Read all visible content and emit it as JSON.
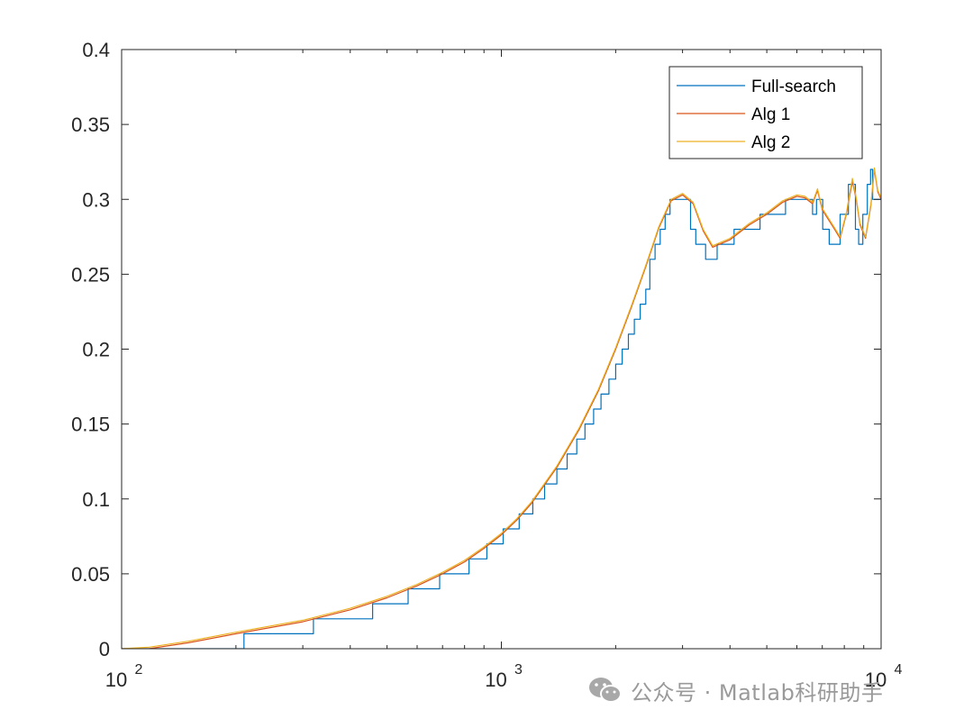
{
  "chart_data": {
    "type": "line",
    "title": "",
    "xlabel": "",
    "ylabel": "",
    "x_scale": "log",
    "xlim": [
      100,
      10000
    ],
    "ylim": [
      0,
      0.4
    ],
    "x_ticks": [
      {
        "value": 100,
        "base": "10",
        "exp": "2"
      },
      {
        "value": 1000,
        "base": "10",
        "exp": "3"
      },
      {
        "value": 10000,
        "base": "10",
        "exp": "4"
      }
    ],
    "y_ticks": [
      {
        "value": 0,
        "label": "0"
      },
      {
        "value": 0.05,
        "label": "0.05"
      },
      {
        "value": 0.1,
        "label": "0.1"
      },
      {
        "value": 0.15,
        "label": "0.15"
      },
      {
        "value": 0.2,
        "label": "0.2"
      },
      {
        "value": 0.25,
        "label": "0.25"
      },
      {
        "value": 0.3,
        "label": "0.3"
      },
      {
        "value": 0.35,
        "label": "0.35"
      },
      {
        "value": 0.4,
        "label": "0.4"
      }
    ],
    "grid": false,
    "legend_position": "top-right",
    "series": [
      {
        "name": "Full-search",
        "color": "#0072BD",
        "step": true,
        "x": [
          100,
          148,
          210,
          320,
          458,
          568,
          688,
          822,
          916,
          1011,
          1114,
          1210,
          1300,
          1400,
          1490,
          1580,
          1660,
          1750,
          1830,
          1920,
          2000,
          2080,
          2160,
          2240,
          2320,
          2400,
          2460,
          2540,
          2620,
          2700,
          2780,
          3150,
          3250,
          3450,
          3700,
          4100,
          4800,
          5600,
          6600,
          6760,
          7020,
          7300,
          7800,
          8200,
          8560,
          8730,
          8950,
          9200,
          9380,
          9500,
          9800,
          10000
        ],
        "y": [
          0,
          0,
          0.01,
          0.02,
          0.03,
          0.04,
          0.05,
          0.06,
          0.07,
          0.08,
          0.09,
          0.1,
          0.11,
          0.12,
          0.13,
          0.14,
          0.15,
          0.16,
          0.17,
          0.18,
          0.19,
          0.2,
          0.21,
          0.22,
          0.23,
          0.24,
          0.26,
          0.27,
          0.28,
          0.29,
          0.3,
          0.28,
          0.27,
          0.26,
          0.27,
          0.28,
          0.29,
          0.3,
          0.29,
          0.3,
          0.28,
          0.27,
          0.29,
          0.31,
          0.28,
          0.27,
          0.29,
          0.31,
          0.32,
          0.3,
          0.3,
          0.3
        ]
      },
      {
        "name": "Alg 1",
        "color": "#D95319",
        "step": false,
        "x": [
          100,
          118,
          150,
          200,
          300,
          400,
          500,
          600,
          700,
          800,
          900,
          1000,
          1100,
          1200,
          1400,
          1600,
          1800,
          2000,
          2200,
          2400,
          2600,
          2800,
          3000,
          3200,
          3400,
          3600,
          4000,
          4500,
          5000,
          5500,
          6000,
          6300,
          6600,
          6800,
          7000,
          7500,
          7800,
          8100,
          8400,
          8600,
          8800,
          9100,
          9400,
          9600,
          9800,
          10000
        ],
        "y": [
          0,
          0,
          0.004,
          0.01,
          0.018,
          0.026,
          0.034,
          0.042,
          0.05,
          0.058,
          0.067,
          0.076,
          0.086,
          0.097,
          0.121,
          0.146,
          0.172,
          0.2,
          0.228,
          0.255,
          0.281,
          0.299,
          0.303,
          0.297,
          0.279,
          0.268,
          0.273,
          0.283,
          0.29,
          0.298,
          0.302,
          0.301,
          0.297,
          0.306,
          0.293,
          0.281,
          0.274,
          0.29,
          0.312,
          0.3,
          0.283,
          0.274,
          0.296,
          0.32,
          0.305,
          0.3
        ]
      },
      {
        "name": "Alg 2",
        "color": "#EDB120",
        "step": false,
        "x": [
          100,
          118,
          150,
          200,
          300,
          400,
          500,
          600,
          700,
          800,
          900,
          1000,
          1100,
          1200,
          1400,
          1600,
          1800,
          2000,
          2200,
          2400,
          2600,
          2800,
          3000,
          3200,
          3400,
          3600,
          4000,
          4500,
          5000,
          5500,
          6000,
          6300,
          6600,
          6800,
          7000,
          7500,
          7800,
          8100,
          8400,
          8600,
          8800,
          9100,
          9400,
          9600,
          9800,
          10000
        ],
        "y": [
          0,
          0.001,
          0.005,
          0.011,
          0.019,
          0.027,
          0.035,
          0.043,
          0.051,
          0.059,
          0.068,
          0.077,
          0.087,
          0.098,
          0.122,
          0.147,
          0.173,
          0.201,
          0.229,
          0.256,
          0.282,
          0.3,
          0.304,
          0.298,
          0.28,
          0.269,
          0.274,
          0.284,
          0.291,
          0.299,
          0.303,
          0.302,
          0.298,
          0.307,
          0.294,
          0.282,
          0.275,
          0.291,
          0.314,
          0.301,
          0.284,
          0.275,
          0.297,
          0.321,
          0.306,
          0.301
        ]
      }
    ]
  },
  "watermark": {
    "text": "公众号 · Matlab科研助手",
    "icon": "wechat-icon"
  }
}
